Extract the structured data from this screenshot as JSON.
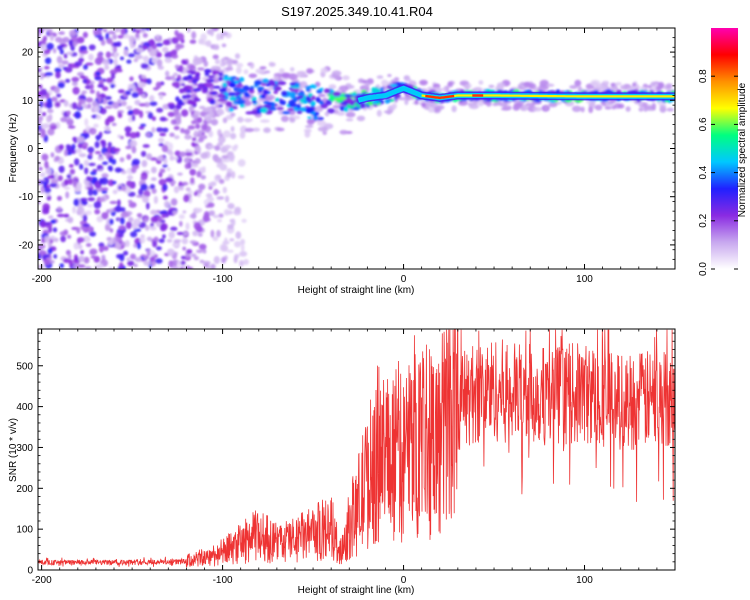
{
  "title": "S197.2025.349.10.41.R04",
  "chart_data": [
    {
      "type": "heatmap",
      "name": "spectrogram",
      "xlabel": "Height of straight line (km)",
      "ylabel": "Frequency (Hz)",
      "xlim": [
        -202,
        150
      ],
      "ylim": [
        -25,
        25
      ],
      "xticks": [
        -200,
        -100,
        0,
        100
      ],
      "yticks": [
        -20,
        -10,
        0,
        10,
        20
      ],
      "xtick_labels": [
        "-200",
        "-100",
        "0",
        "100"
      ],
      "ytick_labels": [
        "-20",
        "-10",
        "0",
        "10",
        "20"
      ],
      "band_center_hz": [
        [
          -125,
          12
        ],
        [
          -110,
          13
        ],
        [
          -100,
          12
        ],
        [
          -90,
          11
        ],
        [
          -80,
          10.5
        ],
        [
          -70,
          11
        ],
        [
          -60,
          10.5
        ],
        [
          -50,
          9.5
        ],
        [
          -40,
          10
        ],
        [
          -30,
          9.5
        ],
        [
          -20,
          10.5
        ],
        [
          -10,
          11
        ],
        [
          0,
          12.5
        ],
        [
          10,
          11
        ],
        [
          20,
          10.5
        ],
        [
          30,
          11
        ],
        [
          50,
          11
        ],
        [
          100,
          10.8
        ],
        [
          150,
          10.8
        ]
      ],
      "colorbar": {
        "label": "Normalized spectral amplitude",
        "range": [
          0,
          1
        ],
        "ticks": [
          0.0,
          0.2,
          0.4,
          0.6,
          0.8
        ],
        "tick_labels": [
          "0.0",
          "0.2",
          "0.4",
          "0.6",
          "0.8"
        ],
        "colors": [
          "#ffffff",
          "#c8a8ef",
          "#8a2be2",
          "#2020ff",
          "#00c8ff",
          "#00ff80",
          "#ffff00",
          "#ff9000",
          "#ff0000",
          "#ff00b0"
        ]
      }
    },
    {
      "type": "line",
      "name": "snr",
      "xlabel": "Height of straight line (km)",
      "ylabel": "SNR (10 * v/v)",
      "xlim": [
        -202,
        150
      ],
      "ylim": [
        0,
        590
      ],
      "xticks": [
        -200,
        -100,
        0,
        100
      ],
      "yticks": [
        0,
        100,
        200,
        300,
        400,
        500
      ],
      "xtick_labels": [
        "-200",
        "-100",
        "0",
        "100"
      ],
      "ytick_labels": [
        "0",
        "100",
        "200",
        "300",
        "400",
        "500"
      ],
      "color": "#ee3333",
      "trend": {
        "x": [
          -202,
          -150,
          -120,
          -110,
          -100,
          -90,
          -80,
          -70,
          -60,
          -50,
          -40,
          -35,
          -30,
          -25,
          -20,
          -15,
          -10,
          -5,
          0,
          5,
          10,
          15,
          20,
          25,
          30,
          35,
          40,
          50,
          60,
          80,
          100,
          120,
          150
        ],
        "y": [
          18,
          18,
          20,
          28,
          40,
          60,
          80,
          60,
          70,
          80,
          100,
          40,
          100,
          150,
          200,
          260,
          260,
          280,
          250,
          300,
          330,
          310,
          280,
          370,
          400,
          410,
          420,
          430,
          420,
          415,
          420,
          400,
          410
        ]
      }
    }
  ]
}
